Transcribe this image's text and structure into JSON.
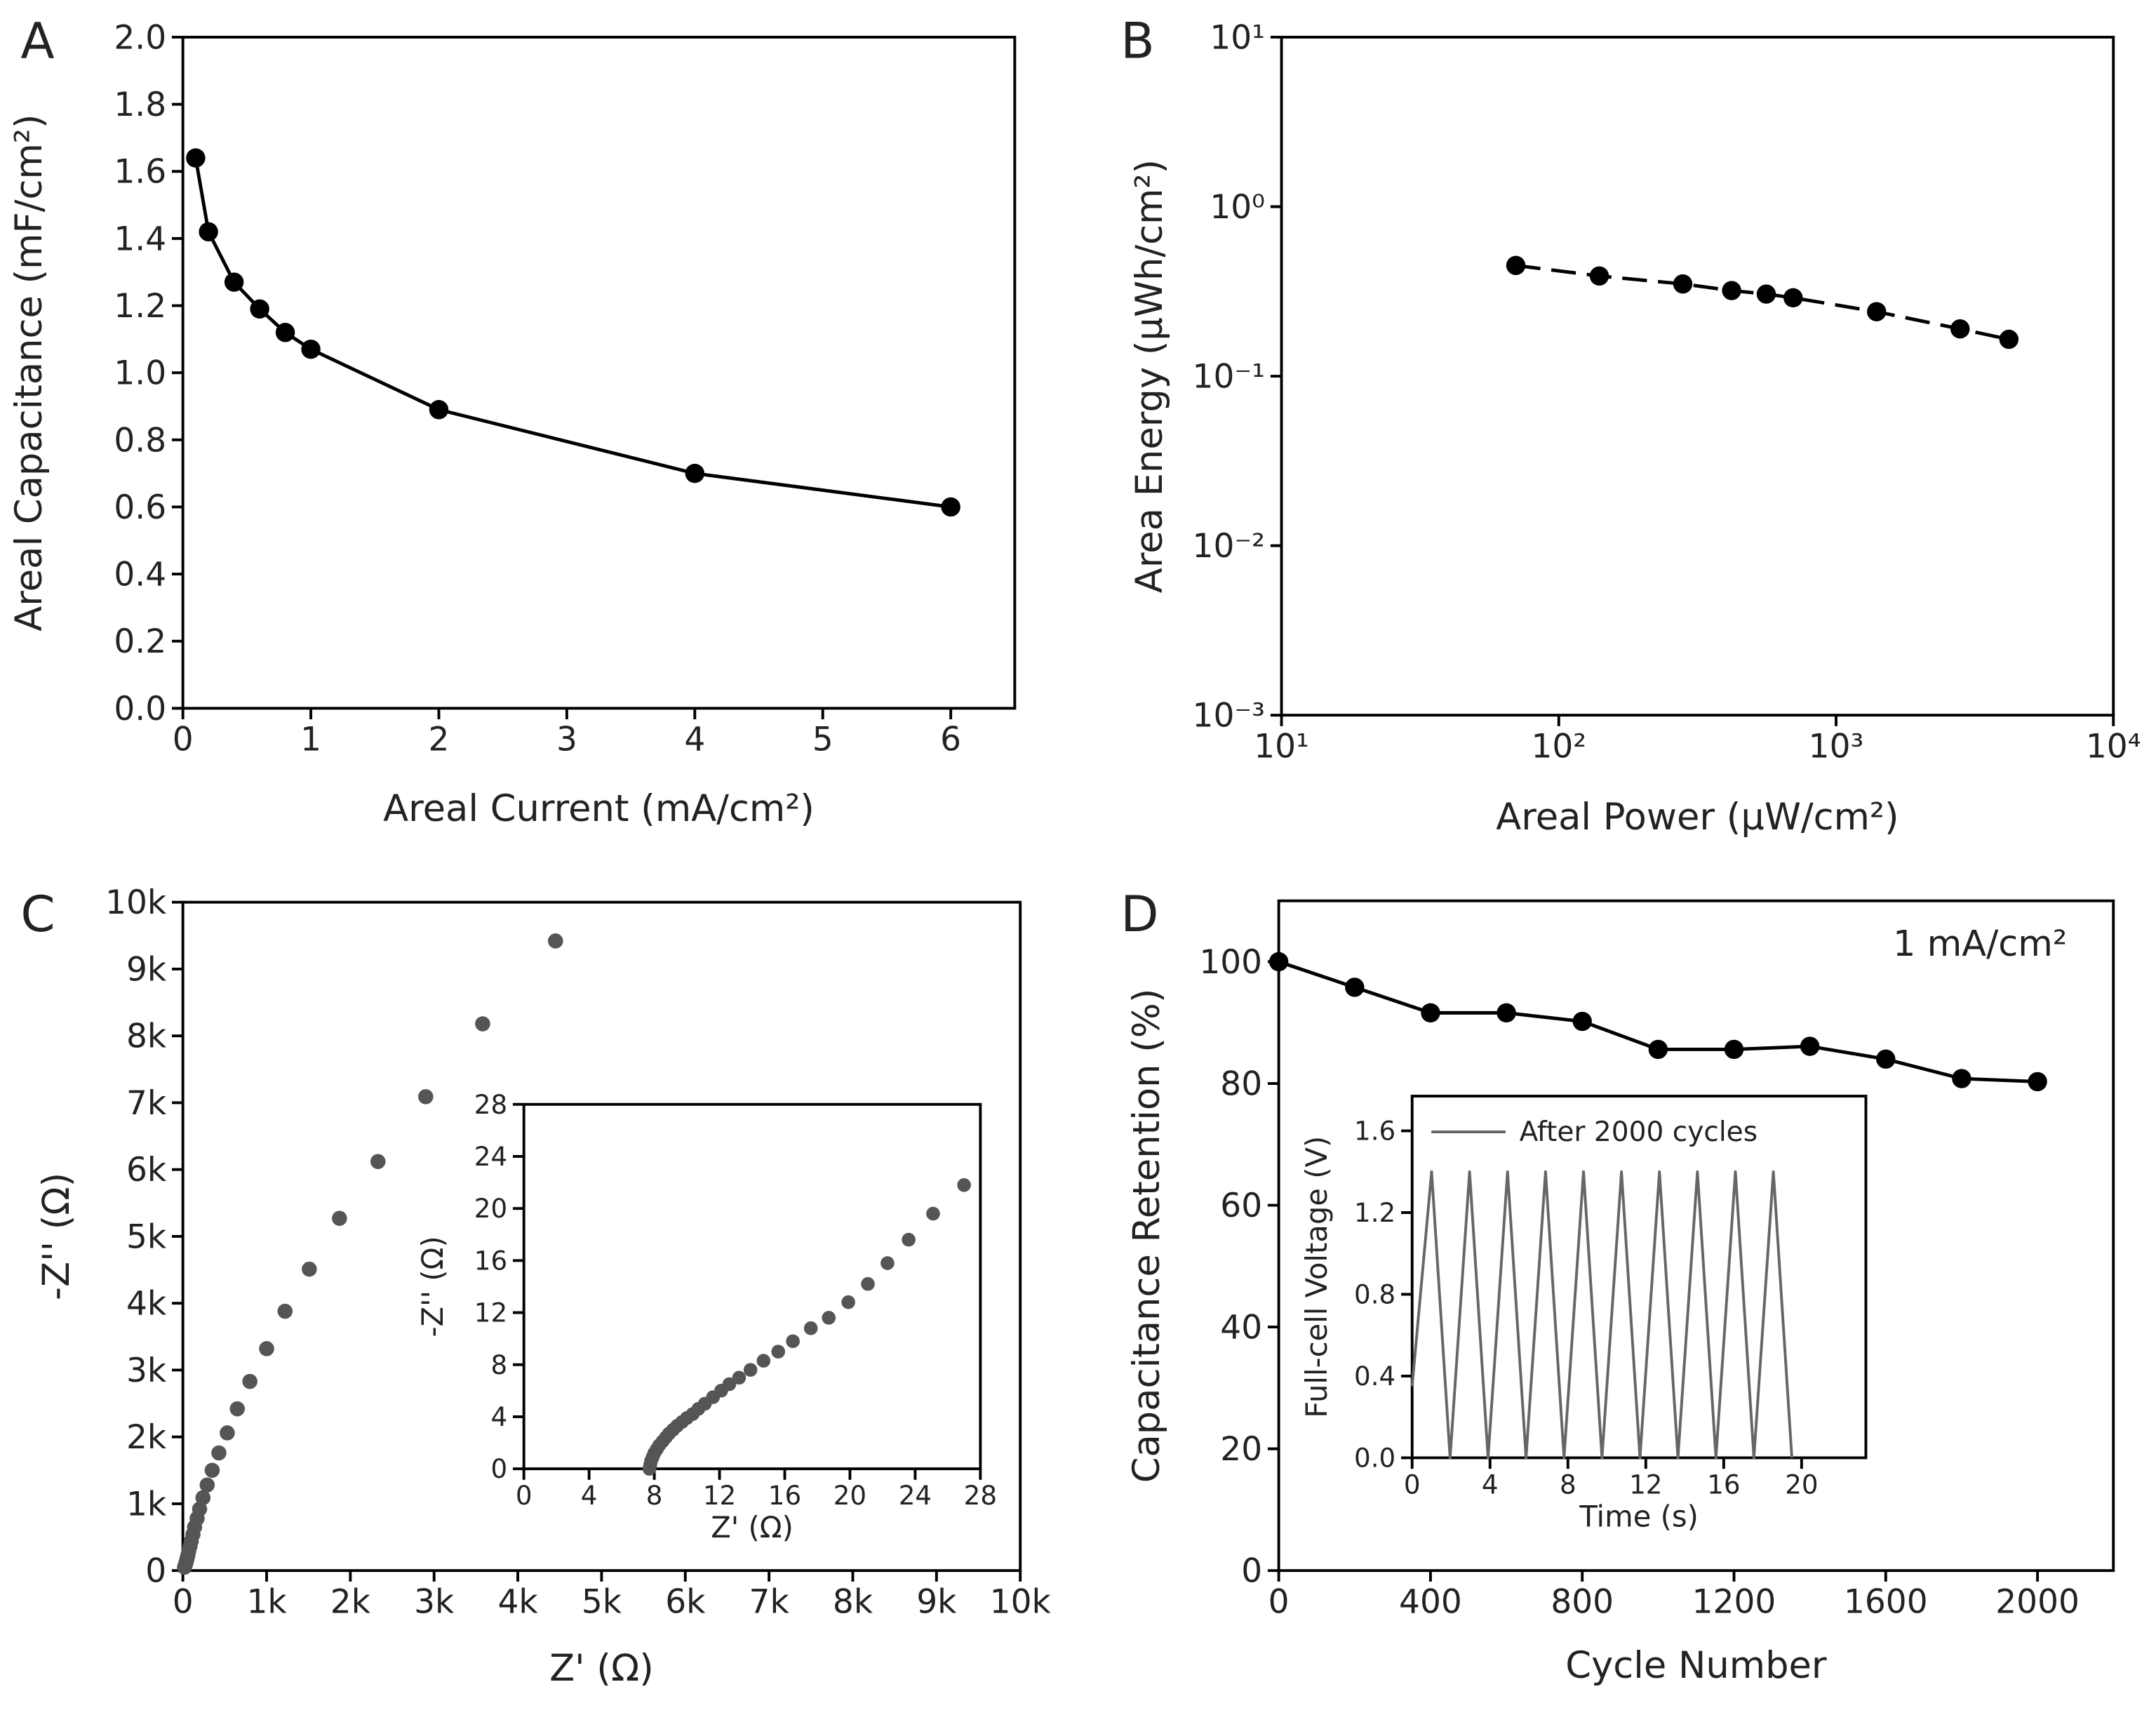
{
  "chart_data": [
    {
      "type": "line",
      "label": "A",
      "xlabel": "Areal Current (mA/cm²)",
      "ylabel": "Areal Capacitance (mF/cm²)",
      "x": [
        0.1,
        0.2,
        0.4,
        0.6,
        0.8,
        1,
        2,
        4,
        6
      ],
      "series": [
        {
          "color": "#000000",
          "marker": "circle",
          "line_style": "solid",
          "values": [
            1.64,
            1.42,
            1.27,
            1.19,
            1.12,
            1.07,
            0.89,
            0.7,
            0.6
          ]
        }
      ],
      "xlim": [
        0,
        6.5
      ],
      "xticks": [
        0,
        1,
        2,
        3,
        4,
        5,
        6
      ],
      "ylim": [
        0,
        2
      ],
      "yticks": [
        {
          "value": 0,
          "label": "0.0"
        },
        0.2,
        0.4,
        0.6,
        0.8,
        {
          "value": 1,
          "label": "1.0"
        },
        1.2,
        1.4,
        1.6,
        1.8,
        {
          "value": 2,
          "label": "2.0"
        }
      ]
    },
    {
      "type": "line",
      "label": "B",
      "xlabel": "Areal Power (μW/cm²)",
      "ylabel": "Area Energy (μWh/cm²)",
      "xscale": "log",
      "yscale": "log",
      "x": [
        70,
        140,
        280,
        420,
        560,
        700,
        1400,
        2800,
        4200
      ],
      "series": [
        {
          "color": "#000000",
          "marker": "circle",
          "line_style": "dashed",
          "values": [
            0.45,
            0.39,
            0.35,
            0.32,
            0.305,
            0.29,
            0.24,
            0.19,
            0.165
          ]
        }
      ],
      "xlim": [
        10,
        10000
      ],
      "xticks": [
        {
          "value": 10,
          "label": "10¹"
        },
        {
          "value": 100,
          "label": "10²"
        },
        {
          "value": 1000,
          "label": "10³"
        },
        {
          "value": 10000,
          "label": "10⁴"
        }
      ],
      "ylim": [
        0.001,
        10
      ],
      "yticks": [
        {
          "value": 0.001,
          "label": "10⁻³"
        },
        {
          "value": 0.01,
          "label": "10⁻²"
        },
        {
          "value": 0.1,
          "label": "10⁻¹"
        },
        {
          "value": 1,
          "label": "10⁰"
        },
        {
          "value": 10,
          "label": "10¹"
        }
      ]
    },
    {
      "type": "scatter",
      "label": "C",
      "xlabel": "Z' (Ω)",
      "ylabel": "-Z'' (Ω)",
      "x": [
        4450,
        3580,
        2900,
        2330,
        1870,
        1510,
        1220,
        1000,
        800,
        650,
        530,
        430,
        350,
        290,
        240,
        200,
        170,
        140,
        120,
        100,
        85,
        70,
        60,
        50,
        40,
        30,
        20
      ],
      "series": [
        {
          "color": "#555555",
          "marker": "circle",
          "values": [
            9420,
            8180,
            7090,
            6120,
            5270,
            4510,
            3880,
            3320,
            2830,
            2420,
            2060,
            1760,
            1500,
            1280,
            1090,
            920,
            780,
            650,
            540,
            440,
            360,
            290,
            230,
            180,
            130,
            90,
            50
          ]
        }
      ],
      "xlim": [
        0,
        10000
      ],
      "xticks": [
        0,
        {
          "value": 1000,
          "label": "1k"
        },
        {
          "value": 2000,
          "label": "2k"
        },
        {
          "value": 3000,
          "label": "3k"
        },
        {
          "value": 4000,
          "label": "4k"
        },
        {
          "value": 5000,
          "label": "5k"
        },
        {
          "value": 6000,
          "label": "6k"
        },
        {
          "value": 7000,
          "label": "7k"
        },
        {
          "value": 8000,
          "label": "8k"
        },
        {
          "value": 9000,
          "label": "9k"
        },
        {
          "value": 10000,
          "label": "10k"
        }
      ],
      "ylim": [
        0,
        10000
      ],
      "yticks": [
        0,
        {
          "value": 1000,
          "label": "1k"
        },
        {
          "value": 2000,
          "label": "2k"
        },
        {
          "value": 3000,
          "label": "3k"
        },
        {
          "value": 4000,
          "label": "4k"
        },
        {
          "value": 5000,
          "label": "5k"
        },
        {
          "value": 6000,
          "label": "6k"
        },
        {
          "value": 7000,
          "label": "7k"
        },
        {
          "value": 8000,
          "label": "8k"
        },
        {
          "value": 9000,
          "label": "9k"
        },
        {
          "value": 10000,
          "label": "10k"
        }
      ]
    },
    {
      "type": "scatter",
      "xlabel": "Z' (Ω)",
      "ylabel": "-Z'' (Ω)",
      "x": [
        7.7,
        7.75,
        7.8,
        7.9,
        8.0,
        8.15,
        8.3,
        8.5,
        8.7,
        8.9,
        9.15,
        9.4,
        9.7,
        10.0,
        10.35,
        10.7,
        11.1,
        11.6,
        12.1,
        12.6,
        13.2,
        13.9,
        14.7,
        15.6,
        16.5,
        17.6,
        18.7,
        19.9,
        21.1,
        22.3,
        23.6,
        25.1,
        27.0
      ],
      "series": [
        {
          "color": "#555555",
          "marker": "circle",
          "values": [
            0,
            0.3,
            0.6,
            0.9,
            1.2,
            1.5,
            1.8,
            2.1,
            2.4,
            2.7,
            3.0,
            3.3,
            3.6,
            3.9,
            4.2,
            4.6,
            5.0,
            5.5,
            6.0,
            6.5,
            7.0,
            7.6,
            8.3,
            9.0,
            9.8,
            10.8,
            11.6,
            12.8,
            14.2,
            15.8,
            17.6,
            19.6,
            21.8
          ]
        }
      ],
      "xlim": [
        0,
        28
      ],
      "xticks": [
        0,
        4,
        8,
        12,
        16,
        20,
        24,
        28
      ],
      "ylim": [
        0,
        28
      ],
      "yticks": [
        0,
        4,
        8,
        12,
        16,
        20,
        24,
        28
      ]
    },
    {
      "type": "line",
      "label": "D",
      "xlabel": "Cycle Number",
      "ylabel": "Capacitance Retention (%)",
      "annotation": "1 mA/cm²",
      "x": [
        0,
        200,
        400,
        600,
        800,
        1000,
        1200,
        1400,
        1600,
        1800,
        2000
      ],
      "series": [
        {
          "color": "#000000",
          "marker": "circle",
          "line_style": "solid",
          "values": [
            100,
            95.8,
            91.6,
            91.6,
            90.2,
            85.6,
            85.6,
            86.1,
            84.0,
            80.8,
            80.3
          ]
        }
      ],
      "xlim": [
        0,
        2200
      ],
      "xticks": [
        0,
        400,
        800,
        1200,
        1600,
        2000
      ],
      "ylim": [
        0,
        110
      ],
      "yticks": [
        0,
        20,
        40,
        60,
        80,
        100
      ]
    },
    {
      "type": "line",
      "xlabel": "Time (s)",
      "ylabel": "Full-cell Voltage (V)",
      "legend": "upper left",
      "x": [
        0,
        1.0,
        1.95,
        2.95,
        3.9,
        4.9,
        5.85,
        6.85,
        7.8,
        8.8,
        9.75,
        10.75,
        11.7,
        12.7,
        13.65,
        14.65,
        15.6,
        16.6,
        17.55,
        18.55,
        19.5
      ],
      "series": [
        {
          "name": "After 2000 cycles",
          "color": "#666666",
          "line_style": "solid",
          "values": [
            0.35,
            1.4,
            0,
            1.4,
            0,
            1.4,
            0,
            1.4,
            0,
            1.4,
            0,
            1.4,
            0,
            1.4,
            0,
            1.4,
            0,
            1.4,
            0,
            1.4,
            0
          ]
        }
      ],
      "xlim": [
        0,
        23.3
      ],
      "xticks": [
        0,
        4,
        8,
        12,
        16,
        20
      ],
      "ylim": [
        0,
        1.77
      ],
      "yticks": [
        {
          "value": 0,
          "label": "0.0"
        },
        0.4,
        0.8,
        1.2,
        1.6
      ]
    }
  ]
}
